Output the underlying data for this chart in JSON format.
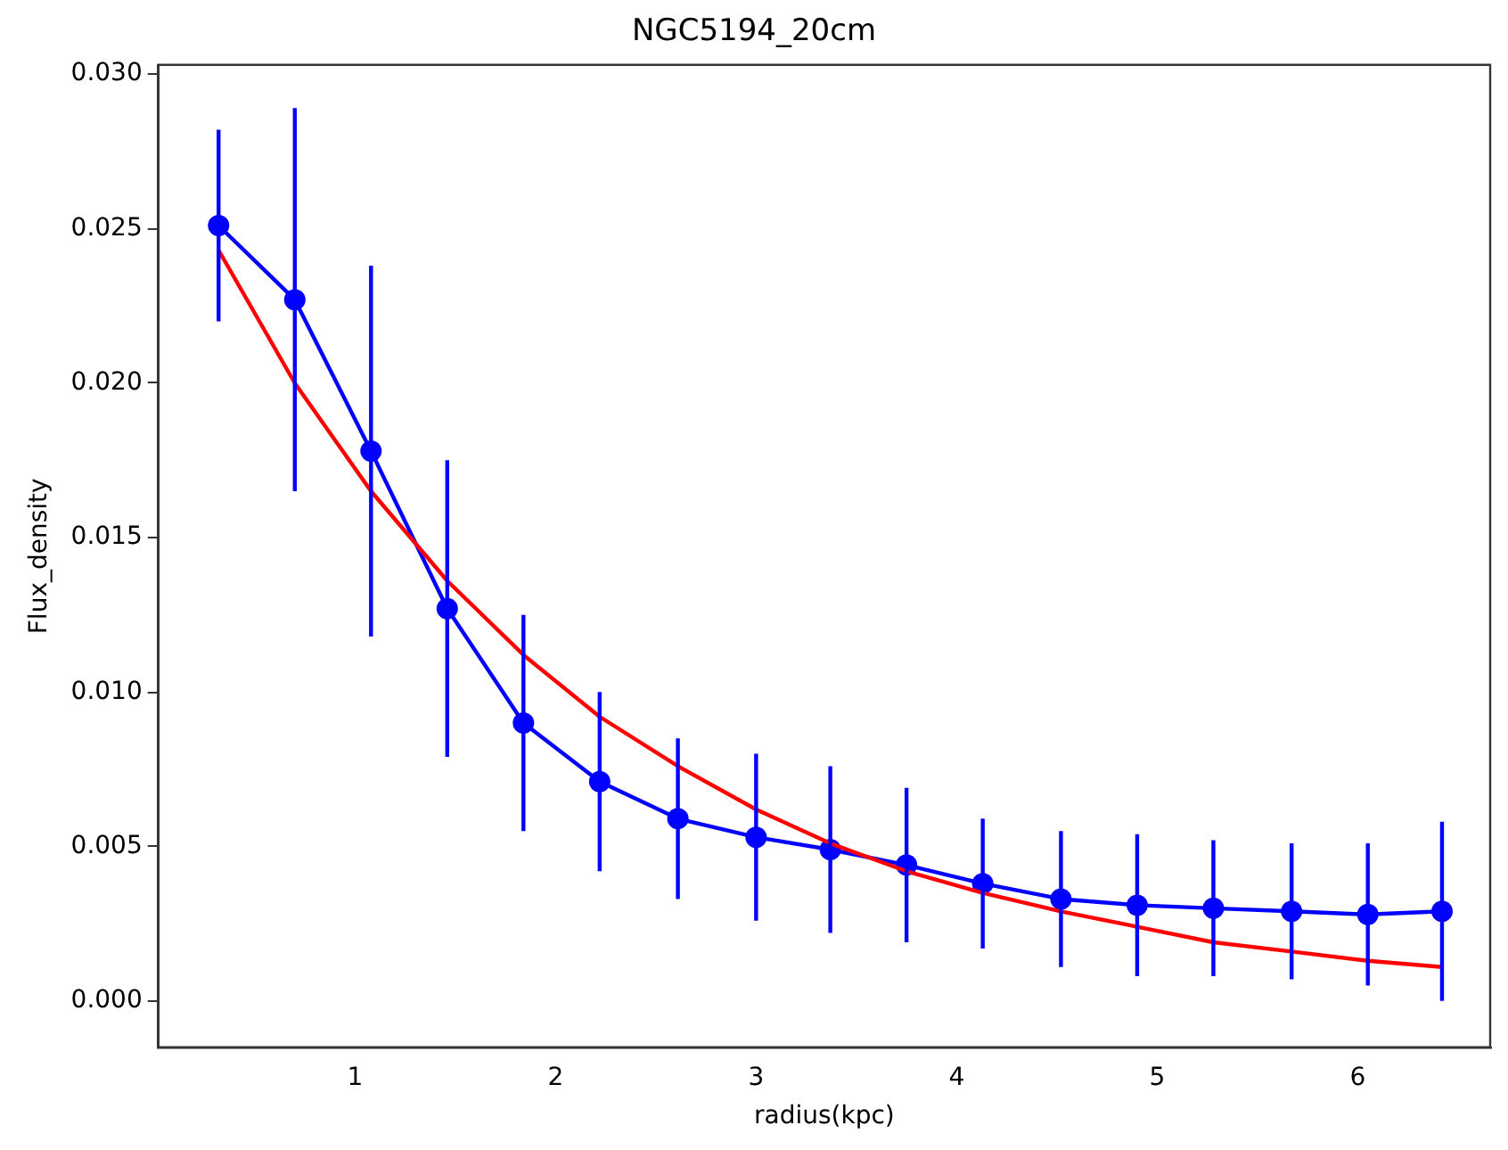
{
  "chart_data": {
    "type": "line",
    "title": "NGC5194_20cm",
    "xlabel": "radius(kpc)",
    "ylabel": "Flux_density",
    "xlim": [
      0.02,
      6.66
    ],
    "xticks": [
      1,
      2,
      3,
      4,
      5,
      6
    ],
    "ylim": [
      -0.0015,
      0.0303
    ],
    "yticks": [
      {
        "value": 0,
        "label": "0.000"
      },
      {
        "value": 0.005,
        "label": "0.005"
      },
      {
        "value": 0.01,
        "label": "0.010"
      },
      {
        "value": 0.015,
        "label": "0.015"
      },
      {
        "value": 0.02,
        "label": "0.020"
      },
      {
        "value": 0.025,
        "label": "0.025"
      },
      {
        "value": 0.03,
        "label": "0.030"
      }
    ],
    "marker": "circle",
    "series": [
      {
        "color": "#0000ff",
        "x": [
          0.32,
          0.7,
          1.08,
          1.46,
          1.84,
          2.22,
          2.61,
          3.0,
          3.37,
          3.75,
          4.13,
          4.52,
          4.9,
          5.28,
          5.67,
          6.05,
          6.42
        ],
        "values": [
          0.0251,
          0.0227,
          0.0178,
          0.0127,
          0.009,
          0.0071,
          0.0059,
          0.0053,
          0.0049,
          0.0044,
          0.0038,
          0.0033,
          0.0031,
          0.003,
          0.0029,
          0.0028,
          0.0029
        ],
        "errors": [
          0.0031,
          0.0062,
          0.006,
          0.0048,
          0.0035,
          0.0029,
          0.0026,
          0.0027,
          0.0027,
          0.0025,
          0.0021,
          0.0022,
          0.0023,
          0.0022,
          0.0022,
          0.0023,
          0.0029
        ]
      },
      {
        "color": "#ff0000",
        "marker": "none",
        "x": [
          0.32,
          0.7,
          1.08,
          1.46,
          1.84,
          2.22,
          2.61,
          3.0,
          3.37,
          3.75,
          4.13,
          4.52,
          4.9,
          5.28,
          5.67,
          6.05,
          6.42
        ],
        "values": [
          0.0243,
          0.02,
          0.0165,
          0.0136,
          0.0112,
          0.0092,
          0.0076,
          0.0062,
          0.0051,
          0.0042,
          0.0035,
          0.0029,
          0.0024,
          0.0019,
          0.0016,
          0.0013,
          0.0011
        ]
      }
    ]
  }
}
